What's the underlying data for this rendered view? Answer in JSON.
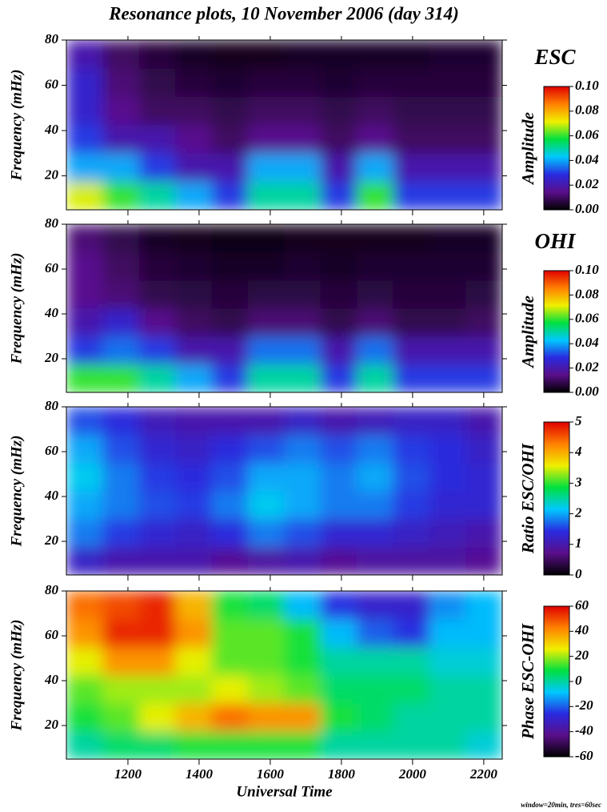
{
  "title": "Resonance plots, 10 November 2006 (day 314)",
  "note": "window=20min, tres=60sec",
  "chart_data": [
    {
      "type": "heatmap",
      "panel_label": "ESC",
      "ylabel": "Frequency (mHz)",
      "colorbar_label": "Amplitude",
      "x": [
        1078,
        1180,
        1282,
        1384,
        1486,
        1588,
        1690,
        1792,
        1894,
        1996,
        2098,
        2200
      ],
      "y": [
        11.25,
        23.75,
        36.25,
        48.75,
        61.25,
        73.75
      ],
      "values": [
        [
          0.07,
          0.06,
          0.05,
          0.04,
          0.03,
          0.05,
          0.05,
          0.03,
          0.06,
          0.03,
          0.03,
          0.03
        ],
        [
          0.04,
          0.04,
          0.03,
          0.02,
          0.02,
          0.04,
          0.04,
          0.02,
          0.04,
          0.02,
          0.02,
          0.02
        ],
        [
          0.03,
          0.02,
          0.02,
          0.015,
          0.01,
          0.015,
          0.015,
          0.01,
          0.015,
          0.01,
          0.01,
          0.01
        ],
        [
          0.025,
          0.015,
          0.01,
          0.01,
          0.008,
          0.01,
          0.01,
          0.008,
          0.01,
          0.008,
          0.008,
          0.008
        ],
        [
          0.025,
          0.012,
          0.008,
          0.006,
          0.005,
          0.006,
          0.006,
          0.005,
          0.006,
          0.006,
          0.006,
          0.006
        ],
        [
          0.02,
          0.01,
          0.006,
          0.004,
          0.003,
          0.003,
          0.004,
          0.004,
          0.004,
          0.004,
          0.005,
          0.005
        ]
      ],
      "xlim": [
        1027,
        2252
      ],
      "xticks": [
        1200,
        1400,
        1600,
        1800,
        2000,
        2200
      ],
      "ylim": [
        5,
        80
      ],
      "yticks": [
        20,
        40,
        60,
        80
      ],
      "zlim": [
        0,
        0.1
      ],
      "zticks": [
        {
          "value": 0,
          "label": "0.00"
        },
        {
          "value": 0.02,
          "label": "0.02"
        },
        {
          "value": 0.04,
          "label": "0.04"
        },
        {
          "value": 0.06,
          "label": "0.06"
        },
        {
          "value": 0.08,
          "label": "0.08"
        },
        {
          "value": 0.1,
          "label": "0.10"
        }
      ],
      "colorscale": [
        "#000000",
        "#5a0e8a",
        "#2a2ae0",
        "#00c8ff",
        "#00e040",
        "#f0f000",
        "#ff8000",
        "#e00000"
      ]
    },
    {
      "type": "heatmap",
      "panel_label": "OHI",
      "ylabel": "Frequency (mHz)",
      "colorbar_label": "Amplitude",
      "x": [
        1078,
        1180,
        1282,
        1384,
        1486,
        1588,
        1690,
        1792,
        1894,
        1996,
        2098,
        2200
      ],
      "y": [
        11.25,
        23.75,
        36.25,
        48.75,
        61.25,
        73.75
      ],
      "values": [
        [
          0.06,
          0.06,
          0.05,
          0.04,
          0.03,
          0.05,
          0.05,
          0.03,
          0.05,
          0.03,
          0.03,
          0.03
        ],
        [
          0.03,
          0.035,
          0.03,
          0.02,
          0.02,
          0.035,
          0.035,
          0.02,
          0.035,
          0.02,
          0.02,
          0.02
        ],
        [
          0.02,
          0.025,
          0.015,
          0.01,
          0.008,
          0.012,
          0.012,
          0.008,
          0.012,
          0.008,
          0.008,
          0.01
        ],
        [
          0.015,
          0.012,
          0.008,
          0.007,
          0.006,
          0.007,
          0.007,
          0.006,
          0.007,
          0.006,
          0.006,
          0.007
        ],
        [
          0.015,
          0.01,
          0.006,
          0.005,
          0.004,
          0.004,
          0.005,
          0.004,
          0.005,
          0.005,
          0.005,
          0.005
        ],
        [
          0.012,
          0.008,
          0.004,
          0.003,
          0.002,
          0.002,
          0.003,
          0.003,
          0.003,
          0.003,
          0.004,
          0.004
        ]
      ],
      "xlim": [
        1027,
        2252
      ],
      "xticks": [
        1200,
        1400,
        1600,
        1800,
        2000,
        2200
      ],
      "ylim": [
        5,
        80
      ],
      "yticks": [
        20,
        40,
        60,
        80
      ],
      "zlim": [
        0,
        0.1
      ],
      "zticks": [
        {
          "value": 0,
          "label": "0.00"
        },
        {
          "value": 0.02,
          "label": "0.02"
        },
        {
          "value": 0.04,
          "label": "0.04"
        },
        {
          "value": 0.06,
          "label": "0.06"
        },
        {
          "value": 0.08,
          "label": "0.08"
        },
        {
          "value": 0.1,
          "label": "0.10"
        }
      ],
      "colorscale": [
        "#000000",
        "#5a0e8a",
        "#2a2ae0",
        "#00c8ff",
        "#00e040",
        "#f0f000",
        "#ff8000",
        "#e00000"
      ]
    },
    {
      "type": "heatmap",
      "ylabel": "Frequency (mHz)",
      "colorbar_label": "Ratio ESC/OHI",
      "x": [
        1078,
        1180,
        1282,
        1384,
        1486,
        1588,
        1690,
        1792,
        1894,
        1996,
        2098,
        2200
      ],
      "y": [
        11.25,
        23.75,
        36.25,
        48.75,
        61.25,
        73.75
      ],
      "values": [
        [
          1.2,
          1.0,
          1.0,
          1.0,
          0.8,
          0.9,
          1.0,
          0.8,
          0.9,
          0.9,
          0.9,
          0.8
        ],
        [
          1.8,
          1.5,
          1.3,
          1.2,
          1.4,
          1.8,
          1.6,
          1.3,
          1.3,
          1.2,
          1.1,
          1.0
        ],
        [
          2.0,
          1.8,
          1.6,
          1.5,
          1.8,
          2.2,
          2.0,
          1.8,
          1.8,
          1.5,
          1.3,
          1.3
        ],
        [
          2.2,
          1.8,
          1.5,
          1.4,
          1.6,
          2.0,
          2.0,
          1.8,
          2.0,
          1.6,
          1.4,
          1.3
        ],
        [
          2.0,
          1.6,
          1.3,
          1.2,
          1.4,
          1.6,
          1.8,
          1.6,
          1.8,
          1.5,
          1.4,
          1.2
        ],
        [
          1.6,
          1.4,
          1.1,
          1.0,
          1.0,
          1.0,
          1.2,
          1.0,
          1.1,
          1.2,
          1.2,
          1.0
        ]
      ],
      "xlim": [
        1027,
        2252
      ],
      "xticks": [
        1200,
        1400,
        1600,
        1800,
        2000,
        2200
      ],
      "ylim": [
        5,
        80
      ],
      "yticks": [
        20,
        40,
        60,
        80
      ],
      "zlim": [
        0,
        5
      ],
      "zticks": [
        0,
        1,
        2,
        3,
        4,
        5
      ],
      "colorscale": [
        "#000000",
        "#5a0e8a",
        "#2a2ae0",
        "#00c8ff",
        "#00e040",
        "#f0f000",
        "#ff8000",
        "#e00000"
      ]
    },
    {
      "type": "heatmap",
      "ylabel": "Frequency (mHz)",
      "colorbar_label": "Phase ESC-OHI",
      "xlabel": "Universal Time",
      "x": [
        1078,
        1180,
        1282,
        1384,
        1486,
        1588,
        1690,
        1792,
        1894,
        1996,
        2098,
        2200
      ],
      "y": [
        11.25,
        23.75,
        36.25,
        48.75,
        61.25,
        73.75
      ],
      "values": [
        [
          0,
          5,
          5,
          10,
          10,
          10,
          10,
          0,
          0,
          0,
          0,
          -5
        ],
        [
          10,
          15,
          25,
          35,
          45,
          40,
          40,
          10,
          5,
          0,
          0,
          0
        ],
        [
          15,
          20,
          20,
          20,
          25,
          20,
          15,
          5,
          5,
          5,
          0,
          0
        ],
        [
          25,
          40,
          40,
          25,
          15,
          15,
          10,
          0,
          0,
          0,
          -5,
          -5
        ],
        [
          40,
          55,
          55,
          40,
          15,
          15,
          10,
          -10,
          -20,
          -25,
          -10,
          -10
        ],
        [
          45,
          50,
          55,
          35,
          10,
          5,
          -10,
          -25,
          -30,
          -30,
          -15,
          -10
        ]
      ],
      "xlim": [
        1027,
        2252
      ],
      "xticks": [
        1200,
        1400,
        1600,
        1800,
        2000,
        2200
      ],
      "ylim": [
        5,
        80
      ],
      "yticks": [
        20,
        40,
        60,
        80
      ],
      "zlim": [
        -60,
        60
      ],
      "zticks": [
        -60,
        -40,
        -20,
        0,
        20,
        40,
        60
      ],
      "colorscale": [
        "#000000",
        "#5a0e8a",
        "#2a2ae0",
        "#00c8ff",
        "#00e040",
        "#f0f000",
        "#ff8000",
        "#e00000"
      ]
    }
  ]
}
